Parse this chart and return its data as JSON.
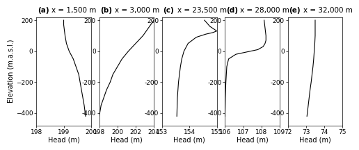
{
  "panels": [
    {
      "label": "(a)",
      "subtitle": "x = 1,500 m",
      "xlabel": "Head (m)",
      "xlim": [
        198,
        200
      ],
      "xticks": [
        198,
        199,
        200
      ],
      "ylim": [
        -480,
        220
      ],
      "yticks": [
        -400,
        -200,
        0,
        200
      ],
      "curve": {
        "elevation": [
          200,
          170,
          100,
          50,
          0,
          -50,
          -100,
          -150,
          -200,
          -250,
          -300,
          -350,
          -420
        ],
        "head": [
          199.0,
          199.0,
          199.05,
          199.1,
          199.2,
          199.35,
          199.45,
          199.55,
          199.6,
          199.65,
          199.7,
          199.75,
          199.8
        ]
      }
    },
    {
      "label": "(b)",
      "subtitle": "x = 3,000 m",
      "xlabel": "Head (m)",
      "xlim": [
        198,
        204
      ],
      "xticks": [
        198,
        200,
        202,
        204
      ],
      "ylim": [
        -480,
        220
      ],
      "yticks": [
        -400,
        -200,
        0,
        200
      ],
      "curve": {
        "elevation": [
          200,
          150,
          100,
          50,
          0,
          -50,
          -100,
          -150,
          -200,
          -250,
          -300,
          -350,
          -420
        ],
        "head": [
          204.0,
          203.4,
          202.8,
          202.0,
          201.2,
          200.5,
          200.0,
          199.5,
          199.2,
          198.8,
          198.5,
          198.2,
          198.0
        ]
      }
    },
    {
      "label": "(c)",
      "subtitle": "x = 23,500 m",
      "xlabel": "Head (m)",
      "xlim": [
        153,
        155
      ],
      "xticks": [
        153,
        154,
        155
      ],
      "ylim": [
        -480,
        220
      ],
      "yticks": [
        -400,
        -200,
        0,
        200
      ],
      "curve": {
        "elevation": [
          200,
          160,
          140,
          130,
          120,
          110,
          90,
          50,
          0,
          -50,
          -100,
          -200,
          -300,
          -420
        ],
        "head": [
          154.55,
          154.75,
          154.92,
          155.0,
          154.85,
          154.6,
          154.25,
          153.95,
          153.8,
          153.72,
          153.67,
          153.6,
          153.56,
          153.54
        ]
      }
    },
    {
      "label": "(d)",
      "subtitle": "x = 28,000 m",
      "xlabel": "Head (m)",
      "xlim": [
        106,
        109
      ],
      "xticks": [
        106,
        107,
        108,
        109
      ],
      "ylim": [
        -480,
        220
      ],
      "yticks": [
        -400,
        -200,
        0,
        200
      ],
      "curve": {
        "elevation": [
          200,
          150,
          100,
          70,
          50,
          30,
          10,
          -5,
          -20,
          -50,
          -100,
          -200,
          -300,
          -420
        ],
        "head": [
          108.15,
          108.2,
          108.25,
          108.25,
          108.2,
          108.1,
          107.8,
          107.2,
          106.6,
          106.2,
          106.1,
          106.05,
          106.02,
          106.0
        ]
      }
    },
    {
      "label": "(e)",
      "subtitle": "x = 32,000 m",
      "xlabel": "Head (m)",
      "xlim": [
        72,
        75
      ],
      "xticks": [
        72,
        73,
        74,
        75
      ],
      "ylim": [
        -480,
        220
      ],
      "yticks": [
        -400,
        -200,
        0,
        200
      ],
      "curve": {
        "elevation": [
          200,
          100,
          50,
          0,
          -50,
          -100,
          -150,
          -200,
          -250,
          -300,
          -350,
          -420
        ],
        "head": [
          73.5,
          73.5,
          73.48,
          73.45,
          73.42,
          73.38,
          73.33,
          73.28,
          73.22,
          73.17,
          73.12,
          73.05
        ]
      }
    }
  ],
  "ylabel": "Elevation (m.a.s.l.)",
  "line_color": "#000000",
  "bg_color": "#ffffff",
  "title_fontsize": 7.5,
  "label_fontsize": 7,
  "tick_fontsize": 6.5
}
